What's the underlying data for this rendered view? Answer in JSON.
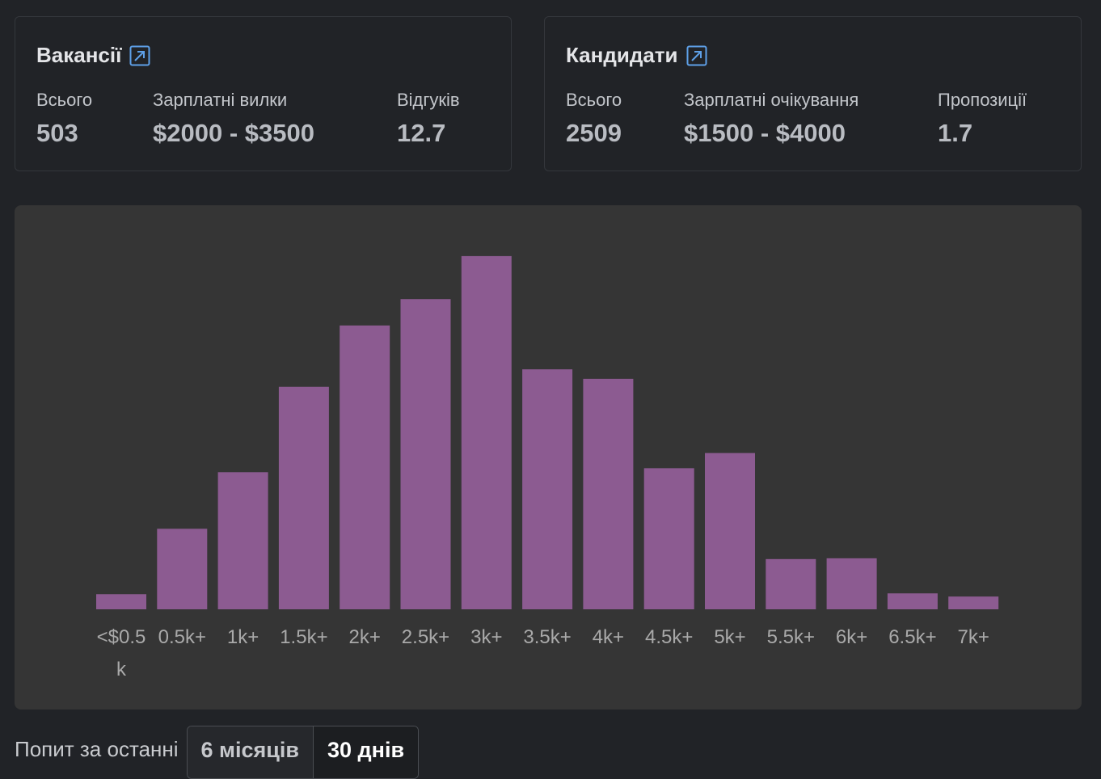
{
  "vacancies": {
    "title": "Вакансії",
    "link_icon": "external-link-icon",
    "stats": [
      {
        "label": "Всього",
        "value": "503"
      },
      {
        "label": "Зарплатні вилки",
        "value": "$2000 - $3500"
      },
      {
        "label": "Відгуків",
        "value": "12.7"
      }
    ]
  },
  "candidates": {
    "title": "Кандидати",
    "link_icon": "external-link-icon",
    "stats": [
      {
        "label": "Всього",
        "value": "2509"
      },
      {
        "label": "Зарплатні очікування",
        "value": "$1500 - $4000"
      },
      {
        "label": "Пропозиції",
        "value": "1.7"
      }
    ]
  },
  "chart_data": {
    "type": "bar",
    "title": "",
    "xlabel": "",
    "ylabel": "",
    "categories": [
      "<$0.5k",
      "0.5k+",
      "1k+",
      "1.5k+",
      "2k+",
      "2.5k+",
      "3k+",
      "3.5k+",
      "4k+",
      "4.5k+",
      "5k+",
      "5.5k+",
      "6k+",
      "6.5k+",
      "7k+"
    ],
    "values": [
      19,
      101,
      172,
      279,
      356,
      389,
      443,
      301,
      289,
      177,
      196,
      63,
      64,
      20,
      16
    ],
    "ylim": [
      0,
      450
    ],
    "grid": false,
    "legend": "none",
    "bar_color": "#8c5b91"
  },
  "footer": {
    "label": "Попит за останні",
    "options": [
      "6 місяців",
      "30 днів"
    ],
    "selected": "30 днів"
  }
}
